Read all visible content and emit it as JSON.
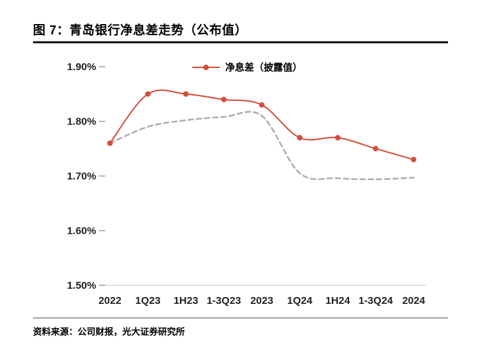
{
  "page": {
    "title": "图 7：青岛银行净息差走势（公布值）",
    "source": "资料来源：公司财报，光大证券研究所"
  },
  "colors": {
    "accent_red": "#D2503C",
    "trend_gray": "#ABABAB",
    "axis_text": "#222222",
    "axis_line": "#c9c9c9"
  },
  "chart_data": {
    "type": "line",
    "title": "青岛银行净息差走势（公布值）",
    "categories": [
      "2022",
      "1Q23",
      "1H23",
      "1-3Q23",
      "2023",
      "1Q24",
      "1H24",
      "1-3Q24",
      "2024"
    ],
    "series": [
      {
        "name": "净息差（披露值）",
        "values": [
          1.76,
          1.85,
          1.85,
          1.84,
          1.83,
          1.77,
          1.77,
          1.75,
          1.73
        ],
        "color": "#D2503C",
        "line_style": "solid",
        "marker": "circle",
        "in_legend": true
      },
      {
        "name": "",
        "values": [
          1.76,
          1.79,
          1.802,
          1.808,
          1.81,
          1.705,
          1.696,
          1.694,
          1.697
        ],
        "color": "#ABABAB",
        "line_style": "dashed",
        "marker": "none",
        "in_legend": false
      }
    ],
    "y_axis": {
      "min": 1.5,
      "max": 1.9,
      "tick_step": 0.1,
      "tick_labels": [
        "1.50%",
        "1.60%",
        "1.70%",
        "1.80%",
        "1.90%"
      ],
      "unit": "%"
    },
    "legend_position": "top-center",
    "grid": false
  }
}
